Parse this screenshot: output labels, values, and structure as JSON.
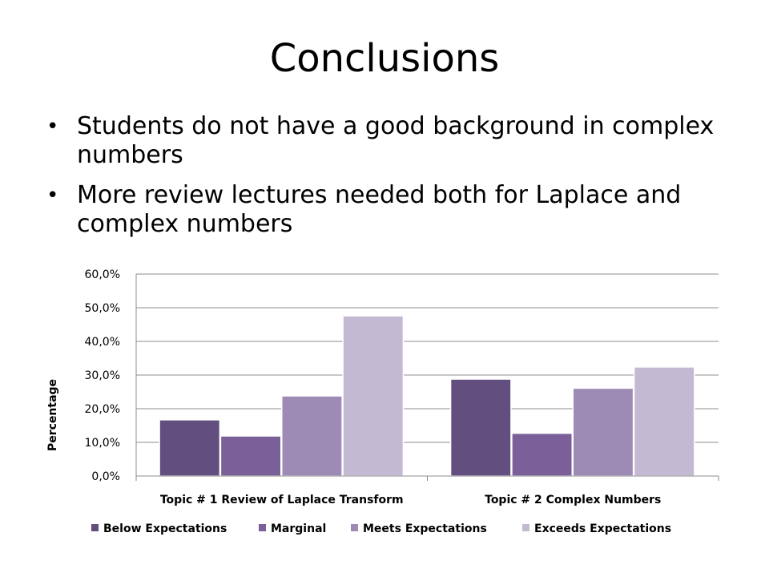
{
  "slide": {
    "title": "Conclusions",
    "bullets": [
      "Students do not have a good background in complex numbers",
      "More review lectures needed both for Laplace and complex numbers"
    ]
  },
  "chart_data": {
    "type": "bar",
    "title": "",
    "xlabel": "",
    "ylabel": "Percentage",
    "categories": [
      "Topic # 1 Review of Laplace Transform",
      "Topic # 2 Complex Numbers"
    ],
    "series": [
      {
        "name": "Below Expectations",
        "values": [
          16.7,
          28.8
        ],
        "color": "#634f7f"
      },
      {
        "name": "Marginal",
        "values": [
          11.9,
          12.7
        ],
        "color": "#7a5f99"
      },
      {
        "name": "Meets Expectations",
        "values": [
          23.8,
          26.1
        ],
        "color": "#9d8bb5"
      },
      {
        "name": "Exceeds Expectations",
        "values": [
          47.6,
          32.4
        ],
        "color": "#c4b9d2"
      }
    ],
    "ylim": [
      0,
      60
    ],
    "yticks": [
      "0,0%",
      "10,0%",
      "20,0%",
      "30,0%",
      "40,0%",
      "50,0%",
      "60,0%"
    ],
    "grid": true,
    "legend": "bottom"
  }
}
